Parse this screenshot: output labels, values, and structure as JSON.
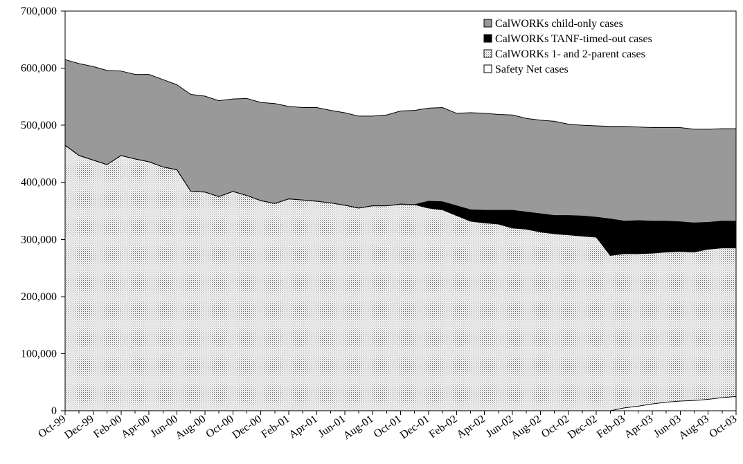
{
  "chart_data": {
    "type": "area",
    "stacked": true,
    "title": "",
    "xlabel": "",
    "ylabel": "",
    "ylim": [
      0,
      700000
    ],
    "yticks": [
      "0",
      "100,000",
      "200,000",
      "300,000",
      "400,000",
      "500,000",
      "600,000",
      "700,000"
    ],
    "ytick_values": [
      0,
      100000,
      200000,
      300000,
      400000,
      500000,
      600000,
      700000
    ],
    "x": [
      "Oct-99",
      "Nov-99",
      "Dec-99",
      "Jan-00",
      "Feb-00",
      "Mar-00",
      "Apr-00",
      "May-00",
      "Jun-00",
      "Jul-00",
      "Aug-00",
      "Sep-00",
      "Oct-00",
      "Nov-00",
      "Dec-00",
      "Jan-01",
      "Feb-01",
      "Mar-01",
      "Apr-01",
      "May-01",
      "Jun-01",
      "Jul-01",
      "Aug-01",
      "Sep-01",
      "Oct-01",
      "Nov-01",
      "Dec-01",
      "Jan-02",
      "Feb-02",
      "Mar-02",
      "Apr-02",
      "May-02",
      "Jun-02",
      "Jul-02",
      "Aug-02",
      "Sep-02",
      "Oct-02",
      "Nov-02",
      "Dec-02",
      "Jan-03",
      "Feb-03",
      "Mar-03",
      "Apr-03",
      "May-03",
      "Jun-03",
      "Jul-03",
      "Aug-03",
      "Sep-03",
      "Oct-03"
    ],
    "xtick_labels": [
      "Oct-99",
      "Dec-99",
      "Feb-00",
      "Apr-00",
      "Jun-00",
      "Aug-00",
      "Oct-00",
      "Dec-00",
      "Feb-01",
      "Apr-01",
      "Jun-01",
      "Aug-01",
      "Oct-01",
      "Dec-01",
      "Feb-02",
      "Apr-02",
      "Jun-02",
      "Aug-02",
      "Oct-02",
      "Dec-02",
      "Feb-03",
      "Apr-03",
      "Jun-03",
      "Aug-03",
      "Oct-03"
    ],
    "legend_position": "top-right",
    "grid": false,
    "series": [
      {
        "name": "Safety Net cases",
        "color": "#ffffff",
        "pattern": "none",
        "values": [
          0,
          0,
          0,
          0,
          0,
          0,
          0,
          0,
          0,
          0,
          0,
          0,
          0,
          0,
          0,
          0,
          0,
          0,
          0,
          0,
          0,
          0,
          0,
          0,
          0,
          0,
          0,
          0,
          0,
          0,
          0,
          0,
          0,
          0,
          0,
          0,
          0,
          0,
          0,
          0,
          5000,
          8000,
          12000,
          15000,
          17000,
          18000,
          20000,
          23000,
          25000
        ]
      },
      {
        "name": "CalWORKs 1- and 2-parent cases",
        "color": "#e6e6e6",
        "pattern": "dots",
        "values": [
          465000,
          447000,
          439000,
          431000,
          447000,
          441000,
          436000,
          427000,
          422000,
          384000,
          383000,
          375000,
          384000,
          377000,
          368000,
          363000,
          371000,
          369000,
          367000,
          364000,
          360000,
          355000,
          359000,
          359000,
          362000,
          361000,
          355000,
          352000,
          342000,
          332000,
          329000,
          327000,
          320000,
          318000,
          313000,
          310000,
          308000,
          306000,
          304000,
          272000,
          270000,
          267000,
          264000,
          263000,
          262000,
          260000,
          263000,
          262000,
          260000
        ]
      },
      {
        "name": "CalWORKs TANF-timed-out cases",
        "color": "#000000",
        "pattern": "none",
        "values": [
          0,
          0,
          0,
          0,
          0,
          0,
          0,
          0,
          0,
          0,
          0,
          0,
          0,
          0,
          0,
          0,
          0,
          0,
          0,
          0,
          0,
          0,
          0,
          0,
          0,
          0,
          12000,
          14000,
          17000,
          20000,
          22000,
          24000,
          31000,
          30000,
          32000,
          32000,
          34000,
          35000,
          35000,
          64000,
          57000,
          58000,
          56000,
          54000,
          52000,
          51000,
          47000,
          47000,
          47000
        ]
      },
      {
        "name": "CalWORKs child-only cases",
        "color": "#999999",
        "pattern": "none",
        "values": [
          150000,
          161000,
          164000,
          165000,
          148000,
          148000,
          153000,
          153000,
          149000,
          170000,
          168000,
          168000,
          162000,
          170000,
          172000,
          175000,
          162000,
          162000,
          164000,
          162000,
          162000,
          161000,
          157000,
          159000,
          163000,
          165000,
          163000,
          165000,
          162000,
          170000,
          170000,
          168000,
          167000,
          164000,
          164000,
          165000,
          160000,
          159000,
          160000,
          162000,
          166000,
          164000,
          164000,
          164000,
          165000,
          164000,
          163000,
          162000,
          162000
        ]
      }
    ],
    "legend_order": [
      "CalWORKs child-only cases",
      "CalWORKs TANF-timed-out cases",
      "CalWORKs 1- and 2-parent cases",
      "Safety Net cases"
    ]
  }
}
